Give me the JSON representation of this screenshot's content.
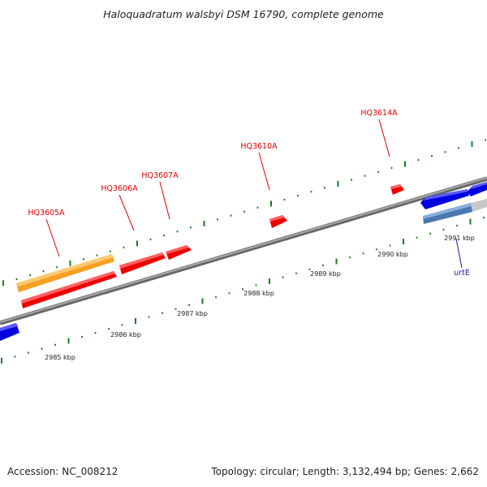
{
  "title": "Haloquadratum walsbyi DSM 16790, complete genome",
  "footer": {
    "accession": "Accession: NC_008212",
    "summary": "Topology: circular; Length: 3,132,494 bp; Genes: 2,662"
  },
  "scale_ticks": [
    "2985 kbp",
    "2986 kbp",
    "2987 kbp",
    "2988 kbp",
    "2989 kbp",
    "2990 kbp",
    "2991 kbp"
  ],
  "gene_labels": [
    {
      "id": "hq3605a",
      "text": "HQ3605A",
      "color": "#e00000"
    },
    {
      "id": "hq3606a",
      "text": "HQ3606A",
      "color": "#e00000"
    },
    {
      "id": "hq3607a",
      "text": "HQ3607A",
      "color": "#e00000"
    },
    {
      "id": "hq3610a",
      "text": "HQ3610A",
      "color": "#e00000"
    },
    {
      "id": "hq3614a",
      "text": "HQ3614A",
      "color": "#e00000"
    },
    {
      "id": "urte",
      "text": "urtE",
      "color": "#1a1aa8"
    }
  ],
  "colors": {
    "backbone": "#8a8a8a",
    "tick_mark": "#1c7a1c",
    "gene_red": "#ee0000",
    "gene_orange": "#f5a020",
    "gene_blue": "#0000e0",
    "gene_steelblue": "#4a78b0",
    "gene_grey": "#c8c8c8"
  }
}
